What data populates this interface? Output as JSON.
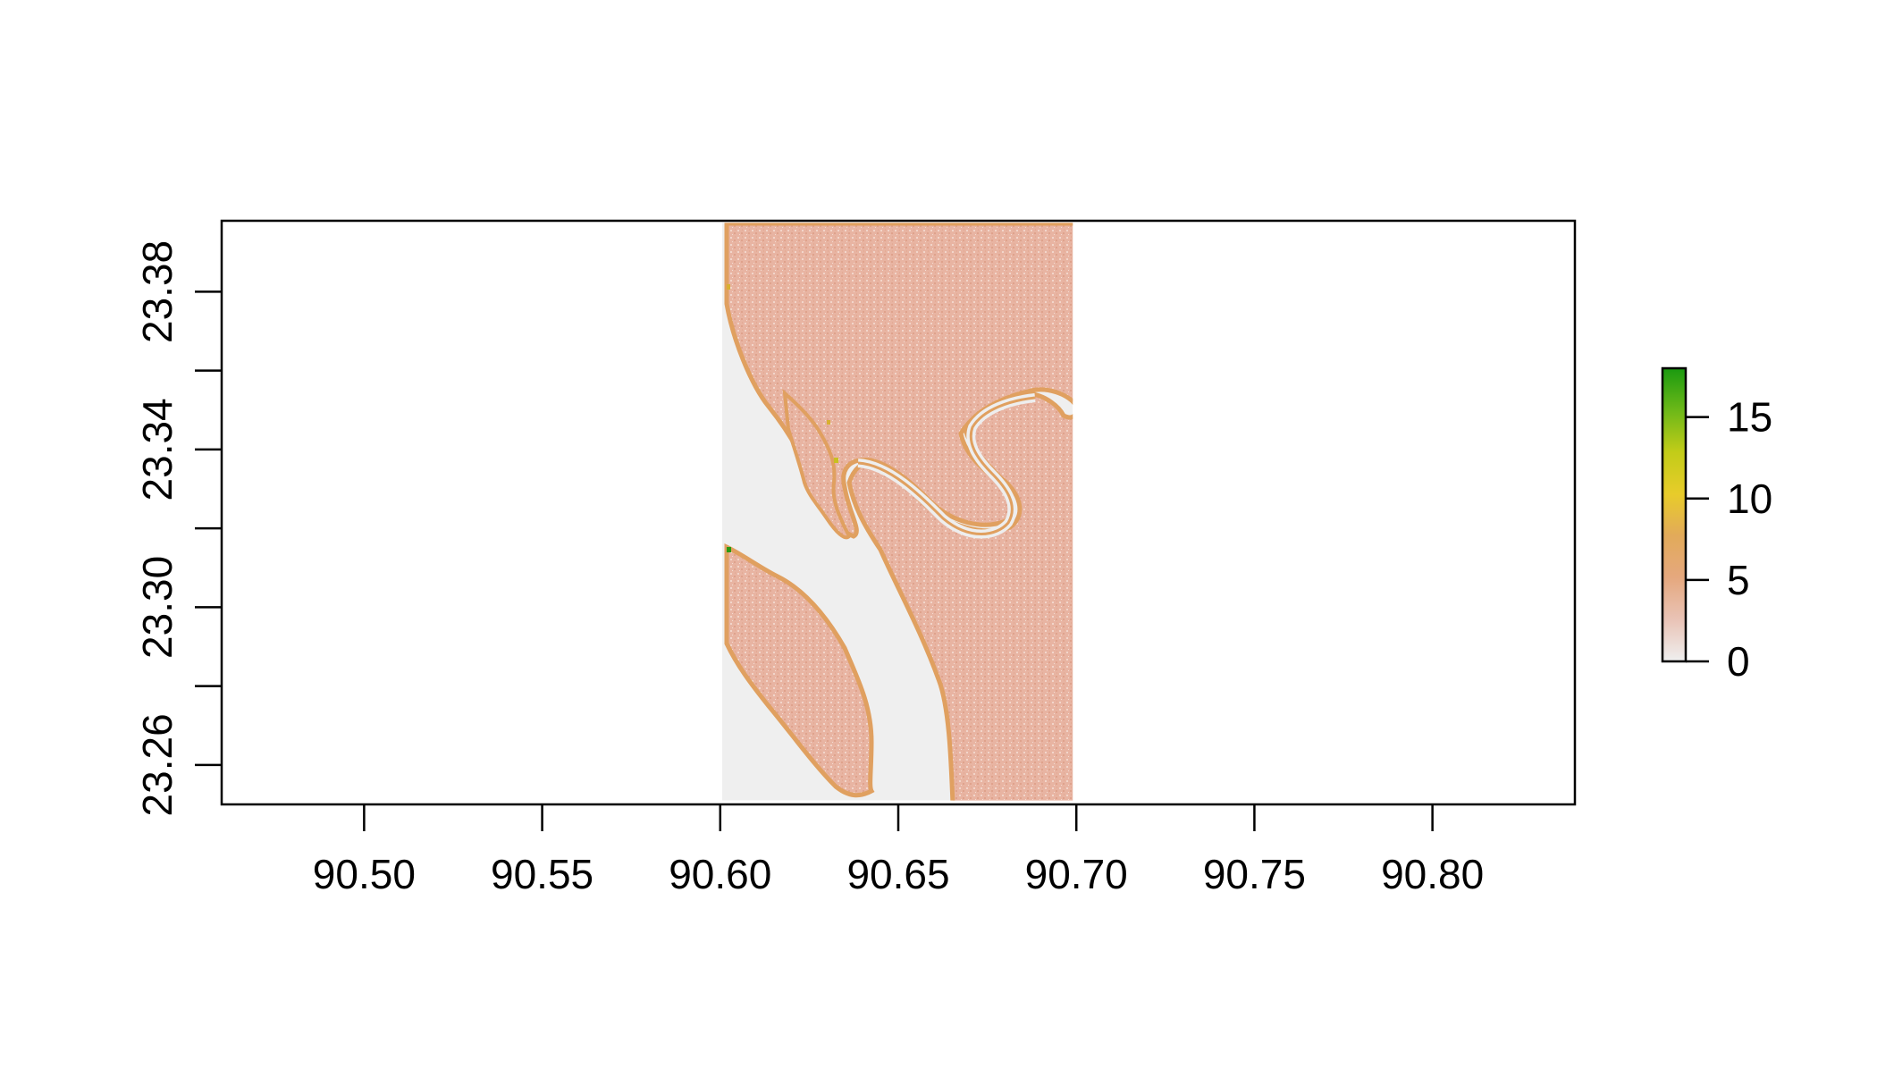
{
  "chart_data": {
    "type": "heatmap",
    "title": "",
    "xlabel": "",
    "ylabel": "",
    "xlim": [
      90.46,
      90.84
    ],
    "ylim": [
      23.25,
      23.398
    ],
    "x_ticks": [
      90.5,
      90.55,
      90.6,
      90.65,
      90.7,
      90.75,
      90.8
    ],
    "x_tick_labels": [
      "90.50",
      "90.55",
      "90.60",
      "90.65",
      "90.70",
      "90.75",
      "90.80"
    ],
    "y_ticks": [
      23.26,
      23.28,
      23.3,
      23.32,
      23.34,
      23.36,
      23.38
    ],
    "y_tick_labels": [
      "23.26",
      "",
      "23.30",
      "",
      "23.34",
      "",
      "23.38"
    ],
    "raster_extent": {
      "xmin": 90.6005,
      "xmax": 90.699,
      "ymin": 23.251,
      "ymax": 23.3975
    },
    "value_range": [
      0,
      18
    ],
    "legend": {
      "placement": "right",
      "ticks": [
        0,
        5,
        10,
        15
      ],
      "tick_labels": [
        "0",
        "5",
        "10",
        "15"
      ],
      "colors": [
        "#efefef",
        "#e9c3b6",
        "#e5a87e",
        "#e2aa5a",
        "#e8cc2a",
        "#c2cc18",
        "#6cb818",
        "#1a9a10"
      ]
    },
    "colors": {
      "land": "#e8b4a2",
      "land_speckle": "#f0cfc3",
      "water": "#efefef",
      "edge": "#e0a060",
      "accent_yellow": "#d8c020",
      "accent_green": "#2a9a10"
    }
  }
}
